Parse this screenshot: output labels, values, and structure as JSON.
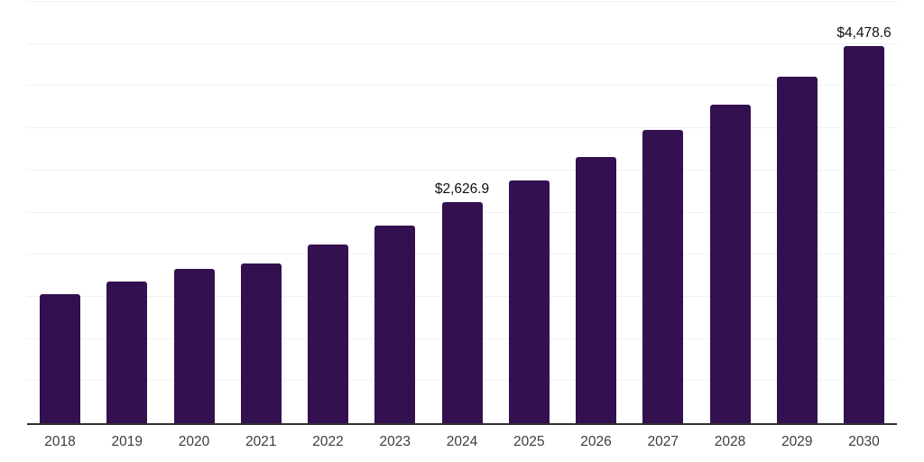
{
  "chart_style": {
    "background_color": "#ffffff",
    "bar_color": "#331150",
    "gridline_color": "#f2f2f2",
    "axis_line_color": "#2e2e2e",
    "tick_label_color": "#3d3d3d",
    "data_label_color": "#111111"
  },
  "chart_data": {
    "type": "bar",
    "title": "",
    "xlabel": "",
    "ylabel": "",
    "categories": [
      "2018",
      "2019",
      "2020",
      "2021",
      "2022",
      "2023",
      "2024",
      "2025",
      "2026",
      "2027",
      "2028",
      "2029",
      "2030"
    ],
    "values": [
      1530,
      1680,
      1835,
      1900,
      2115,
      2345,
      2626.9,
      2880,
      3160,
      3475,
      3775,
      4115,
      4478.6
    ],
    "data_labels": {
      "2024": "$2,626.9",
      "2030": "$4,478.6"
    },
    "ylim": [
      0,
      5000
    ],
    "grid_step": 500,
    "grid": "horizontal-only",
    "y_axis_tick_labels": "none",
    "legend": "none"
  }
}
